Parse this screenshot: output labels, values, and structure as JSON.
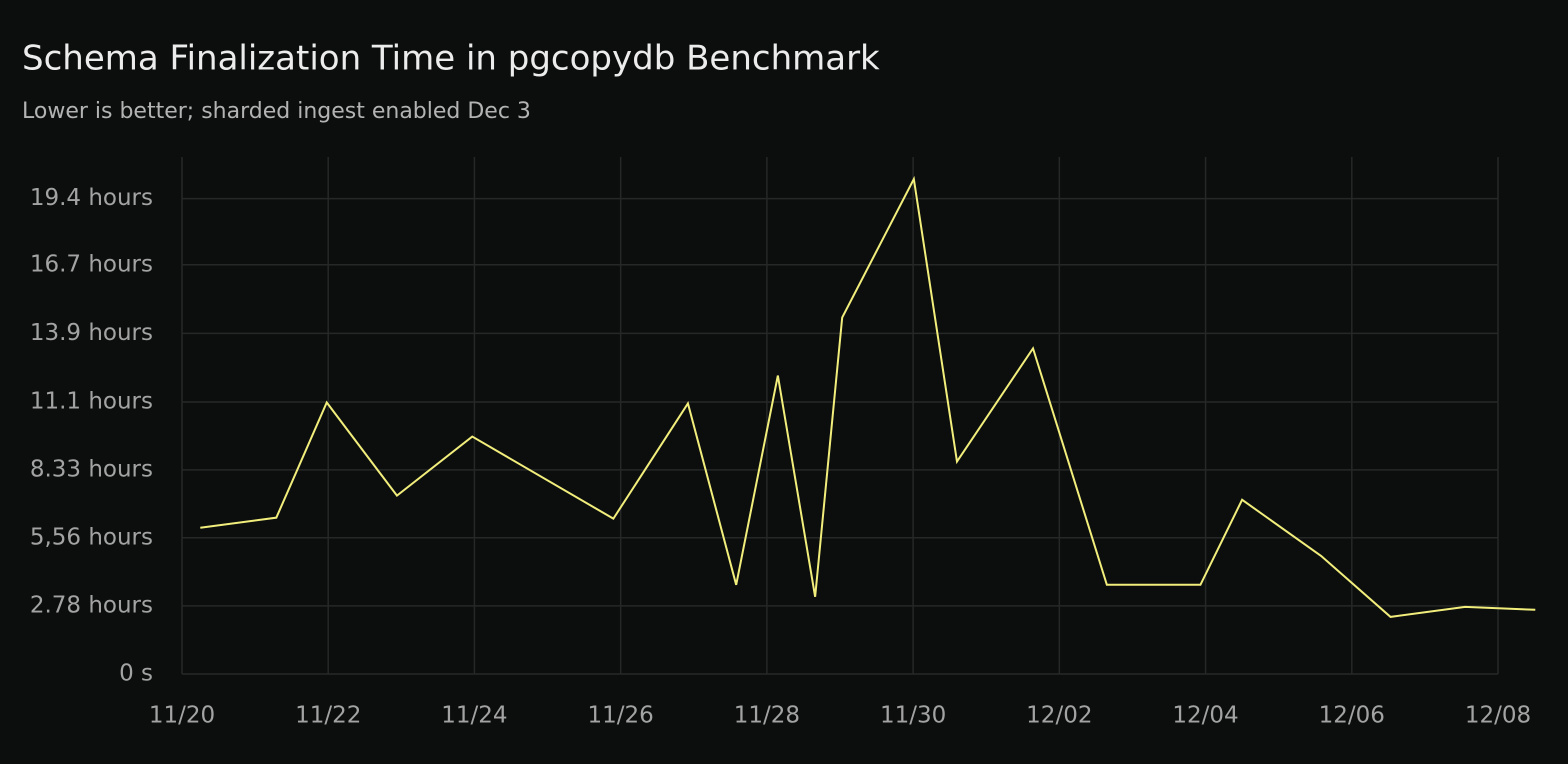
{
  "chart_data": {
    "type": "line",
    "title": "Schema Finalization Time in pgcopydb Benchmark",
    "subtitle": "Lower is better; sharded ingest enabled Dec 3",
    "x": [
      0.25,
      1.29,
      1.98,
      2.94,
      3.97,
      5.9,
      6.92,
      7.58,
      8.15,
      8.66,
      9.03,
      10.01,
      10.6,
      11.64,
      12.65,
      13.93,
      14.5,
      15.58,
      16.53,
      17.55,
      18.51
    ],
    "series": [
      {
        "color": "#f2ee7c",
        "values": [
          5.97,
          6.38,
          11.08,
          7.28,
          9.69,
          6.34,
          11.04,
          3.64,
          12.18,
          3.15,
          14.55,
          20.2,
          8.67,
          13.29,
          3.64,
          3.64,
          7.11,
          4.82,
          2.33,
          2.74,
          2.62
        ]
      }
    ],
    "xlim": [
      0,
      18
    ],
    "xticks": [
      {
        "value": 0,
        "label": "11/20"
      },
      {
        "value": 2,
        "label": "11/22"
      },
      {
        "value": 4,
        "label": "11/24"
      },
      {
        "value": 6,
        "label": "11/26"
      },
      {
        "value": 8,
        "label": "11/28"
      },
      {
        "value": 10,
        "label": "11/30"
      },
      {
        "value": 12,
        "label": "12/02"
      },
      {
        "value": 14,
        "label": "12/04"
      },
      {
        "value": 16,
        "label": "12/06"
      },
      {
        "value": 18,
        "label": "12/08"
      }
    ],
    "ylim": [
      0,
      21.1
    ],
    "yticks": [
      {
        "value": 0,
        "label": "0 s"
      },
      {
        "value": 2.78,
        "label": "2.78 hours"
      },
      {
        "value": 5.56,
        "label": "5,56 hours"
      },
      {
        "value": 8.33,
        "label": "8.33 hours"
      },
      {
        "value": 11.1,
        "label": "11.1 hours"
      },
      {
        "value": 13.9,
        "label": "13.9 hours"
      },
      {
        "value": 16.7,
        "label": "16.7 hours"
      },
      {
        "value": 19.4,
        "label": "19.4 hours"
      }
    ],
    "grid": true
  }
}
